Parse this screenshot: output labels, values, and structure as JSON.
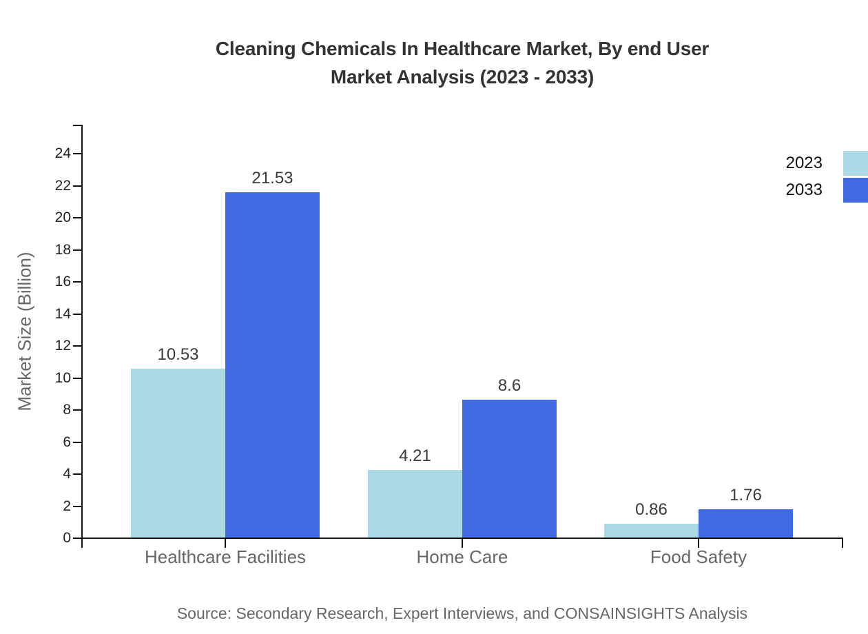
{
  "title": {
    "line1": "Cleaning Chemicals In Healthcare Market, By end User",
    "line2": "Market Analysis (2023 - 2033)"
  },
  "source": "Source: Secondary Research, Expert Interviews, and CONSAINSIGHTS Analysis",
  "chart_data": {
    "type": "bar",
    "title": "Cleaning Chemicals In Healthcare Market, By end User Market Analysis (2023 - 2033)",
    "categories": [
      "Healthcare Facilities",
      "Home Care",
      "Food Safety"
    ],
    "series": [
      {
        "name": "2023",
        "color": "#ADD8E6",
        "values": [
          10.53,
          4.21,
          0.86
        ]
      },
      {
        "name": "2033",
        "color": "#4169E1",
        "values": [
          21.53,
          8.6,
          1.76
        ]
      }
    ],
    "data_labels": {
      "2023": [
        "10.53",
        "4.21",
        "0.86"
      ],
      "2033": [
        "21.53",
        "8.6",
        "1.76"
      ]
    },
    "xlabel": "",
    "ylabel": "Market Size (Billion)",
    "ylim": [
      0,
      25.8
    ],
    "yticks": [
      0,
      2,
      4,
      6,
      8,
      10,
      12,
      14,
      16,
      18,
      20,
      22,
      24
    ],
    "grid": false,
    "legend_position": "top-right"
  },
  "colors": {
    "series_2023": "#ADD8E6",
    "series_2033": "#4169E1",
    "axis": "#111111",
    "title_text": "#333333",
    "tick_text": "#222222",
    "muted_text": "#666666",
    "value_text": "#3a3a3a",
    "background": "#ffffff"
  }
}
